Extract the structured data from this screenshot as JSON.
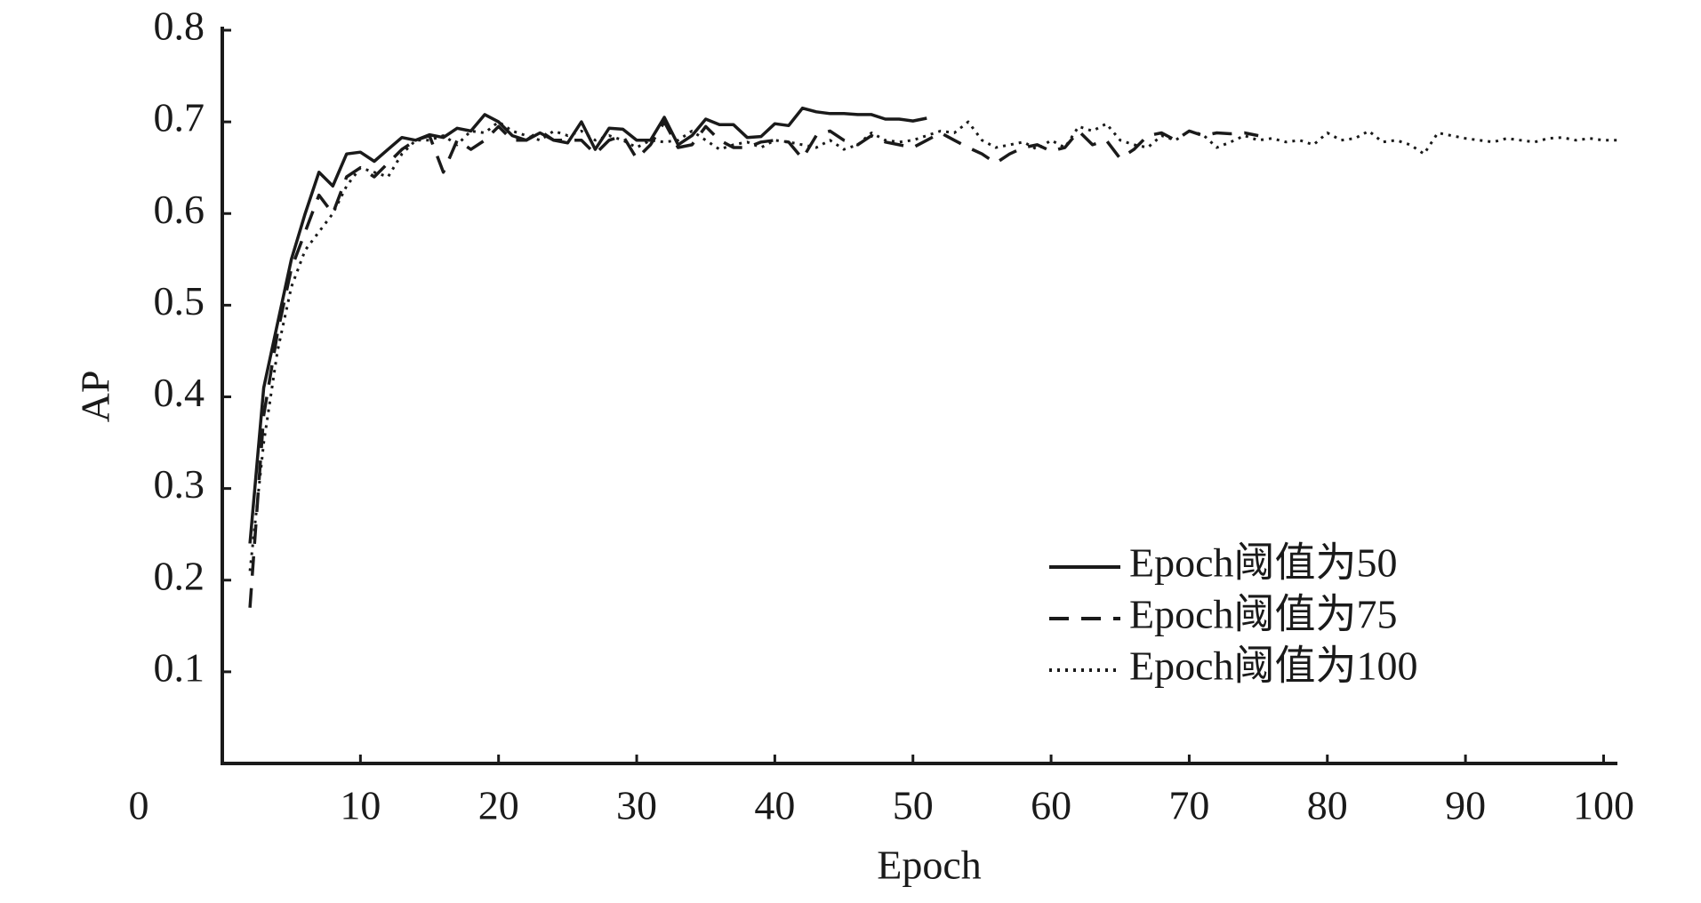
{
  "chart_data": {
    "type": "line",
    "x_label": "Epoch",
    "y_label": "AP",
    "x": [
      2,
      3,
      4,
      5,
      6,
      7,
      8,
      9,
      10,
      11,
      12,
      13,
      14,
      15,
      16,
      17,
      18,
      19,
      20,
      21,
      22,
      23,
      24,
      25,
      26,
      27,
      28,
      29,
      30,
      31,
      32,
      33,
      34,
      35,
      36,
      37,
      38,
      39,
      40,
      41,
      42,
      43,
      44,
      45,
      46,
      47,
      48,
      49,
      50,
      51,
      52,
      53,
      54,
      55,
      56,
      57,
      58,
      59,
      60,
      61,
      62,
      63,
      64,
      65,
      66,
      67,
      68,
      69,
      70,
      71,
      72,
      73,
      74,
      75,
      76,
      77,
      78,
      79,
      80,
      81,
      82,
      83,
      84,
      85,
      86,
      87,
      88,
      89,
      90,
      91,
      92,
      93,
      94,
      95,
      96,
      97,
      98,
      99,
      100,
      101
    ],
    "series": [
      {
        "name": "Epoch阈值为50",
        "color": "#1a1a1a",
        "style": "solid",
        "values": [
          0.24,
          0.41,
          0.48,
          0.55,
          0.6,
          0.645,
          0.63,
          0.665,
          0.667,
          0.657,
          0.67,
          0.683,
          0.68,
          0.686,
          0.683,
          0.693,
          0.69,
          0.708,
          0.7,
          0.685,
          0.68,
          0.688,
          0.68,
          0.677,
          0.7,
          0.67,
          0.693,
          0.692,
          0.68,
          0.68,
          0.705,
          0.675,
          0.685,
          0.703,
          0.697,
          0.697,
          0.683,
          0.684,
          0.698,
          0.696,
          0.715,
          0.711,
          0.709,
          0.709,
          0.708,
          0.708,
          0.703,
          0.703,
          0.701,
          0.704,
          null,
          null,
          null,
          null,
          null,
          null,
          null,
          null,
          null,
          null,
          null,
          null,
          null,
          null,
          null,
          null,
          null,
          null,
          null,
          null,
          null,
          null,
          null,
          null,
          null,
          null,
          null,
          null,
          null,
          null,
          null,
          null,
          null,
          null,
          null,
          null,
          null,
          null,
          null,
          null,
          null,
          null,
          null,
          null,
          null,
          null,
          null,
          null,
          null,
          null
        ]
      },
      {
        "name": "Epoch阈值为75",
        "color": "#1a1a1a",
        "style": "dashed",
        "values": [
          0.17,
          0.38,
          0.47,
          0.54,
          0.58,
          0.62,
          0.6,
          0.64,
          0.65,
          0.64,
          0.655,
          0.67,
          0.68,
          0.685,
          0.645,
          0.68,
          0.67,
          0.68,
          0.695,
          0.68,
          0.68,
          0.69,
          0.68,
          0.68,
          0.68,
          0.665,
          0.68,
          0.685,
          0.66,
          0.675,
          0.7,
          0.672,
          0.675,
          0.695,
          0.68,
          0.672,
          0.672,
          0.678,
          0.68,
          0.678,
          0.66,
          0.685,
          0.69,
          0.68,
          0.675,
          0.685,
          0.678,
          0.675,
          0.672,
          0.68,
          0.688,
          0.68,
          0.672,
          0.665,
          0.655,
          0.665,
          0.672,
          0.675,
          0.668,
          0.672,
          0.69,
          0.675,
          0.68,
          0.66,
          0.67,
          0.685,
          0.688,
          0.68,
          0.69,
          0.685,
          0.688,
          0.687,
          0.688,
          0.685,
          null,
          null,
          null,
          null,
          null,
          null,
          null,
          null,
          null,
          null,
          null,
          null,
          null,
          null,
          null,
          null,
          null,
          null,
          null,
          null,
          null,
          null,
          null,
          null,
          null,
          null
        ]
      },
      {
        "name": "Epoch阈值为100",
        "color": "#1a1a1a",
        "style": "dotted",
        "values": [
          0.21,
          0.35,
          0.45,
          0.52,
          0.56,
          0.58,
          0.6,
          0.63,
          0.65,
          0.645,
          0.64,
          0.665,
          0.68,
          0.68,
          0.685,
          0.675,
          0.69,
          0.688,
          0.7,
          0.69,
          0.685,
          0.68,
          0.69,
          0.685,
          0.69,
          0.68,
          0.685,
          0.68,
          0.672,
          0.68,
          0.678,
          0.68,
          0.69,
          0.68,
          0.67,
          0.675,
          0.678,
          0.672,
          0.68,
          0.678,
          0.675,
          0.672,
          0.68,
          0.67,
          0.675,
          0.688,
          0.68,
          0.678,
          0.68,
          0.685,
          0.69,
          0.688,
          0.7,
          0.68,
          0.672,
          0.675,
          0.678,
          0.67,
          0.68,
          0.672,
          0.695,
          0.69,
          0.698,
          0.68,
          0.675,
          0.672,
          0.685,
          0.68,
          0.69,
          0.686,
          0.672,
          0.678,
          0.685,
          0.68,
          0.682,
          0.678,
          0.68,
          0.675,
          0.688,
          0.68,
          0.682,
          0.69,
          0.678,
          0.68,
          0.675,
          0.665,
          0.688,
          0.685,
          0.682,
          0.68,
          0.678,
          0.682,
          0.68,
          0.678,
          0.682,
          0.683,
          0.68,
          0.682,
          0.68,
          0.68
        ]
      }
    ],
    "xlim": [
      0,
      101
    ],
    "xticks": [
      0,
      10,
      20,
      30,
      40,
      50,
      60,
      70,
      80,
      90,
      100
    ],
    "ylim": [
      0,
      0.8
    ],
    "yticks": [
      0.1,
      0.2,
      0.3,
      0.4,
      0.5,
      0.6,
      0.7,
      0.8
    ],
    "legend": "lower right",
    "grid": false
  }
}
